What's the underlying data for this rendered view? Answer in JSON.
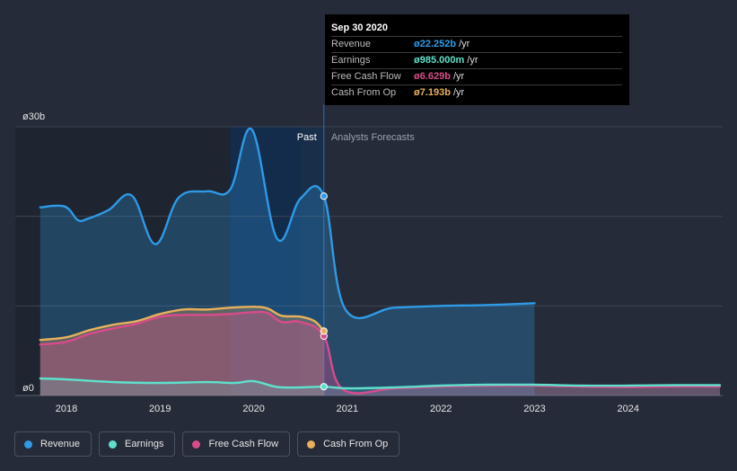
{
  "chart_data": {
    "type": "line",
    "currency_symbol": "ø",
    "y_top_label": "ø30b",
    "y_bottom_label": "ø0",
    "ylim": [
      0,
      30
    ],
    "x_ticks": [
      "2018",
      "2019",
      "2020",
      "2021",
      "2022",
      "2023",
      "2024"
    ],
    "past_label": "Past",
    "forecast_label": "Analysts Forecasts",
    "divider_date": 2020.75,
    "series": [
      {
        "name": "Revenue",
        "color": "#2f9ae6",
        "x": [
          2017.72,
          2017.98,
          2018.12,
          2018.22,
          2018.45,
          2018.7,
          2018.95,
          2019.2,
          2019.5,
          2019.75,
          2019.98,
          2020.25,
          2020.5,
          2020.75,
          2020.98,
          2021.5,
          2022.0,
          2022.5,
          2023.0
        ],
        "y": [
          21.0,
          21.1,
          19.6,
          19.7,
          20.7,
          22.3,
          16.9,
          22.1,
          22.8,
          23.0,
          29.7,
          17.5,
          22.0,
          22.25,
          9.6,
          9.8,
          10.0,
          10.1,
          10.3
        ]
      },
      {
        "name": "Earnings",
        "color": "#5ee0cc",
        "x": [
          2017.72,
          2018.0,
          2018.5,
          2019.0,
          2019.5,
          2019.8,
          2020.0,
          2020.25,
          2020.5,
          2020.75,
          2021.0,
          2021.5,
          2022.0,
          2022.5,
          2023.0,
          2023.5,
          2024.0,
          2024.5,
          2024.98
        ],
        "y": [
          1.9,
          1.8,
          1.5,
          1.4,
          1.5,
          1.4,
          1.6,
          0.95,
          0.9,
          0.985,
          0.8,
          0.9,
          1.1,
          1.2,
          1.2,
          1.1,
          1.1,
          1.15,
          1.15
        ]
      },
      {
        "name": "Free Cash Flow",
        "color": "#d84b8c",
        "x": [
          2017.72,
          2018.0,
          2018.25,
          2018.5,
          2018.75,
          2019.0,
          2019.25,
          2019.5,
          2019.75,
          2020.0,
          2020.15,
          2020.3,
          2020.5,
          2020.75,
          2020.95,
          2021.5,
          2022.0,
          2022.5,
          2023.0,
          2023.5,
          2024.0,
          2024.5,
          2024.98
        ],
        "y": [
          5.7,
          6.0,
          6.9,
          7.5,
          8.0,
          8.8,
          9.0,
          9.0,
          9.1,
          9.3,
          9.2,
          8.2,
          8.2,
          6.63,
          0.7,
          0.8,
          1.0,
          1.1,
          1.1,
          1.0,
          0.95,
          1.0,
          1.0
        ]
      },
      {
        "name": "Cash From Op",
        "color": "#e8b05d",
        "x": [
          2017.72,
          2018.0,
          2018.25,
          2018.5,
          2018.75,
          2019.0,
          2019.25,
          2019.5,
          2019.75,
          2020.0,
          2020.15,
          2020.3,
          2020.5,
          2020.65,
          2020.75
        ],
        "y": [
          6.2,
          6.5,
          7.3,
          7.9,
          8.3,
          9.1,
          9.6,
          9.6,
          9.8,
          9.9,
          9.7,
          8.9,
          8.8,
          8.3,
          7.19
        ]
      }
    ],
    "tooltip": {
      "date": "Sep 30 2020",
      "rows": [
        {
          "label": "Revenue",
          "value": "ø22.252b",
          "unit": "/yr",
          "color": "#2f9ae6"
        },
        {
          "label": "Earnings",
          "value": "ø985.000m",
          "unit": "/yr",
          "color": "#5ee0cc"
        },
        {
          "label": "Free Cash Flow",
          "value": "ø6.629b",
          "unit": "/yr",
          "color": "#d84b8c"
        },
        {
          "label": "Cash From Op",
          "value": "ø7.193b",
          "unit": "/yr",
          "color": "#e8b05d"
        }
      ]
    },
    "legend": [
      {
        "label": "Revenue",
        "color": "#2f9ae6"
      },
      {
        "label": "Earnings",
        "color": "#5ee0cc"
      },
      {
        "label": "Free Cash Flow",
        "color": "#d84b8c"
      },
      {
        "label": "Cash From Op",
        "color": "#e8b05d"
      }
    ]
  }
}
